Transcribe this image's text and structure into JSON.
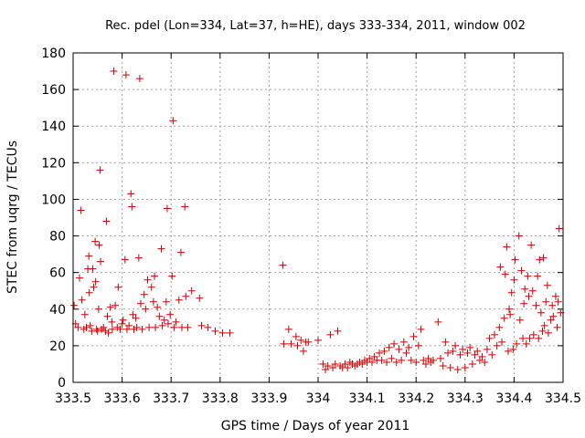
{
  "chart_data": {
    "type": "scatter",
    "title": "Rec. pdel (Lon=334, Lat=37, h=HE), days 333-334, 2011, window 002",
    "xlabel": "GPS time / Days of year 2011",
    "ylabel": "STEC from uqrg / TECUs",
    "xlim": [
      333.5,
      334.5
    ],
    "ylim": [
      0,
      180
    ],
    "xticks": [
      333.5,
      333.6,
      333.7,
      333.8,
      333.9,
      334.0,
      334.1,
      334.2,
      334.3,
      334.4,
      334.5
    ],
    "xtick_labels": [
      "333.5",
      "333.6",
      "333.7",
      "333.8",
      "333.9",
      "334",
      "334.1",
      "334.2",
      "334.3",
      "334.4",
      "334.5"
    ],
    "yticks": [
      0,
      20,
      40,
      60,
      80,
      100,
      120,
      140,
      160,
      180
    ],
    "ytick_labels": [
      "0",
      "20",
      "40",
      "60",
      "80",
      "100",
      "120",
      "140",
      "160",
      "180"
    ],
    "grid": true,
    "marker": "+",
    "marker_color": "#cc0000",
    "series": [
      {
        "points": [
          [
            333.502,
            42
          ],
          [
            333.505,
            32
          ],
          [
            333.51,
            30
          ],
          [
            333.513,
            57
          ],
          [
            333.516,
            94
          ],
          [
            333.518,
            45
          ],
          [
            333.522,
            29
          ],
          [
            333.524,
            37
          ],
          [
            333.527,
            30
          ],
          [
            333.53,
            62
          ],
          [
            333.532,
            69
          ],
          [
            333.533,
            49
          ],
          [
            333.535,
            31
          ],
          [
            333.538,
            28
          ],
          [
            333.54,
            62
          ],
          [
            333.542,
            52
          ],
          [
            333.545,
            77
          ],
          [
            333.546,
            55
          ],
          [
            333.548,
            29
          ],
          [
            333.55,
            28
          ],
          [
            333.552,
            40
          ],
          [
            333.553,
            75
          ],
          [
            333.555,
            116
          ],
          [
            333.556,
            66
          ],
          [
            333.558,
            29
          ],
          [
            333.562,
            30
          ],
          [
            333.566,
            28
          ],
          [
            333.568,
            88
          ],
          [
            333.57,
            36
          ],
          [
            333.572,
            27
          ],
          [
            333.576,
            41
          ],
          [
            333.579,
            33
          ],
          [
            333.58,
            29
          ],
          [
            333.583,
            170
          ],
          [
            333.586,
            42
          ],
          [
            333.59,
            30
          ],
          [
            333.592,
            52
          ],
          [
            333.596,
            29
          ],
          [
            333.6,
            32
          ],
          [
            333.602,
            34
          ],
          [
            333.606,
            67
          ],
          [
            333.608,
            168
          ],
          [
            333.61,
            29
          ],
          [
            333.614,
            31
          ],
          [
            333.618,
            103
          ],
          [
            333.62,
            96
          ],
          [
            333.622,
            37
          ],
          [
            333.624,
            29
          ],
          [
            333.628,
            35
          ],
          [
            333.63,
            30
          ],
          [
            333.634,
            68
          ],
          [
            333.636,
            166
          ],
          [
            333.638,
            43
          ],
          [
            333.641,
            29
          ],
          [
            333.645,
            48
          ],
          [
            333.648,
            40
          ],
          [
            333.652,
            56
          ],
          [
            333.655,
            30
          ],
          [
            333.66,
            52
          ],
          [
            333.664,
            44
          ],
          [
            333.666,
            58
          ],
          [
            333.668,
            30
          ],
          [
            333.672,
            41
          ],
          [
            333.676,
            36
          ],
          [
            333.68,
            73
          ],
          [
            333.682,
            31
          ],
          [
            333.686,
            34
          ],
          [
            333.69,
            44
          ],
          [
            333.692,
            95
          ],
          [
            333.694,
            32
          ],
          [
            333.698,
            37
          ],
          [
            333.702,
            58
          ],
          [
            333.704,
            143
          ],
          [
            333.706,
            30
          ],
          [
            333.71,
            33
          ],
          [
            333.716,
            45
          ],
          [
            333.72,
            71
          ],
          [
            333.722,
            30
          ],
          [
            333.728,
            96
          ],
          [
            333.73,
            47
          ],
          [
            333.734,
            30
          ],
          [
            333.742,
            50
          ],
          [
            333.758,
            46
          ],
          [
            333.762,
            31
          ],
          [
            333.775,
            30
          ],
          [
            333.79,
            28
          ],
          [
            333.805,
            27
          ],
          [
            333.82,
            27
          ],
          [
            333.928,
            64
          ],
          [
            333.93,
            21
          ],
          [
            333.94,
            29
          ],
          [
            333.945,
            21
          ],
          [
            333.955,
            25
          ],
          [
            333.958,
            20
          ],
          [
            333.965,
            23
          ],
          [
            333.97,
            17
          ],
          [
            333.975,
            22
          ],
          [
            333.98,
            22
          ],
          [
            334.0,
            23
          ],
          [
            334.01,
            10
          ],
          [
            334.015,
            7
          ],
          [
            334.02,
            9
          ],
          [
            334.025,
            26
          ],
          [
            334.03,
            8
          ],
          [
            334.035,
            10
          ],
          [
            334.04,
            28
          ],
          [
            334.045,
            9
          ],
          [
            334.05,
            8
          ],
          [
            334.055,
            10
          ],
          [
            334.06,
            8
          ],
          [
            334.065,
            11
          ],
          [
            334.07,
            10
          ],
          [
            334.075,
            9
          ],
          [
            334.08,
            10
          ],
          [
            334.085,
            11
          ],
          [
            334.09,
            10
          ],
          [
            334.095,
            12
          ],
          [
            334.1,
            11
          ],
          [
            334.105,
            13
          ],
          [
            334.11,
            11
          ],
          [
            334.115,
            14
          ],
          [
            334.12,
            12
          ],
          [
            334.125,
            16
          ],
          [
            334.13,
            12
          ],
          [
            334.135,
            17
          ],
          [
            334.14,
            11
          ],
          [
            334.145,
            19
          ],
          [
            334.15,
            13
          ],
          [
            334.155,
            21
          ],
          [
            334.16,
            11
          ],
          [
            334.165,
            18
          ],
          [
            334.17,
            12
          ],
          [
            334.175,
            22
          ],
          [
            334.18,
            16
          ],
          [
            334.185,
            19
          ],
          [
            334.19,
            12
          ],
          [
            334.195,
            25
          ],
          [
            334.2,
            11
          ],
          [
            334.205,
            20
          ],
          [
            334.21,
            29
          ],
          [
            334.215,
            12
          ],
          [
            334.22,
            10
          ],
          [
            334.225,
            13
          ],
          [
            334.23,
            11
          ],
          [
            334.235,
            12
          ],
          [
            334.245,
            33
          ],
          [
            334.25,
            13
          ],
          [
            334.255,
            9
          ],
          [
            334.26,
            22
          ],
          [
            334.265,
            16
          ],
          [
            334.27,
            8
          ],
          [
            334.275,
            17
          ],
          [
            334.28,
            20
          ],
          [
            334.285,
            7
          ],
          [
            334.29,
            15
          ],
          [
            334.295,
            18
          ],
          [
            334.3,
            8
          ],
          [
            334.305,
            16
          ],
          [
            334.31,
            19
          ],
          [
            334.315,
            10
          ],
          [
            334.32,
            15
          ],
          [
            334.325,
            17
          ],
          [
            334.33,
            12
          ],
          [
            334.335,
            14
          ],
          [
            334.34,
            11
          ],
          [
            334.345,
            18
          ],
          [
            334.35,
            24
          ],
          [
            334.355,
            15
          ],
          [
            334.36,
            26
          ],
          [
            334.365,
            20
          ],
          [
            334.37,
            30
          ],
          [
            334.372,
            63
          ],
          [
            334.375,
            22
          ],
          [
            334.38,
            35
          ],
          [
            334.382,
            59
          ],
          [
            334.385,
            74
          ],
          [
            334.388,
            17
          ],
          [
            334.39,
            40
          ],
          [
            334.392,
            37
          ],
          [
            334.395,
            49
          ],
          [
            334.398,
            18
          ],
          [
            334.4,
            56
          ],
          [
            334.402,
            67
          ],
          [
            334.405,
            21
          ],
          [
            334.41,
            80
          ],
          [
            334.412,
            34
          ],
          [
            334.415,
            61
          ],
          [
            334.418,
            24
          ],
          [
            334.42,
            43
          ],
          [
            334.422,
            51
          ],
          [
            334.425,
            21
          ],
          [
            334.428,
            58
          ],
          [
            334.43,
            47
          ],
          [
            334.432,
            24
          ],
          [
            334.435,
            75
          ],
          [
            334.438,
            50
          ],
          [
            334.44,
            26
          ],
          [
            334.445,
            42
          ],
          [
            334.448,
            58
          ],
          [
            334.45,
            24
          ],
          [
            334.452,
            67
          ],
          [
            334.455,
            38
          ],
          [
            334.458,
            28
          ],
          [
            334.46,
            68
          ],
          [
            334.462,
            31
          ],
          [
            334.465,
            44
          ],
          [
            334.468,
            53
          ],
          [
            334.47,
            27
          ],
          [
            334.475,
            34
          ],
          [
            334.478,
            42
          ],
          [
            334.48,
            36
          ],
          [
            334.485,
            47
          ],
          [
            334.488,
            30
          ],
          [
            334.49,
            44
          ],
          [
            334.492,
            84
          ],
          [
            334.495,
            38
          ]
        ]
      }
    ]
  }
}
